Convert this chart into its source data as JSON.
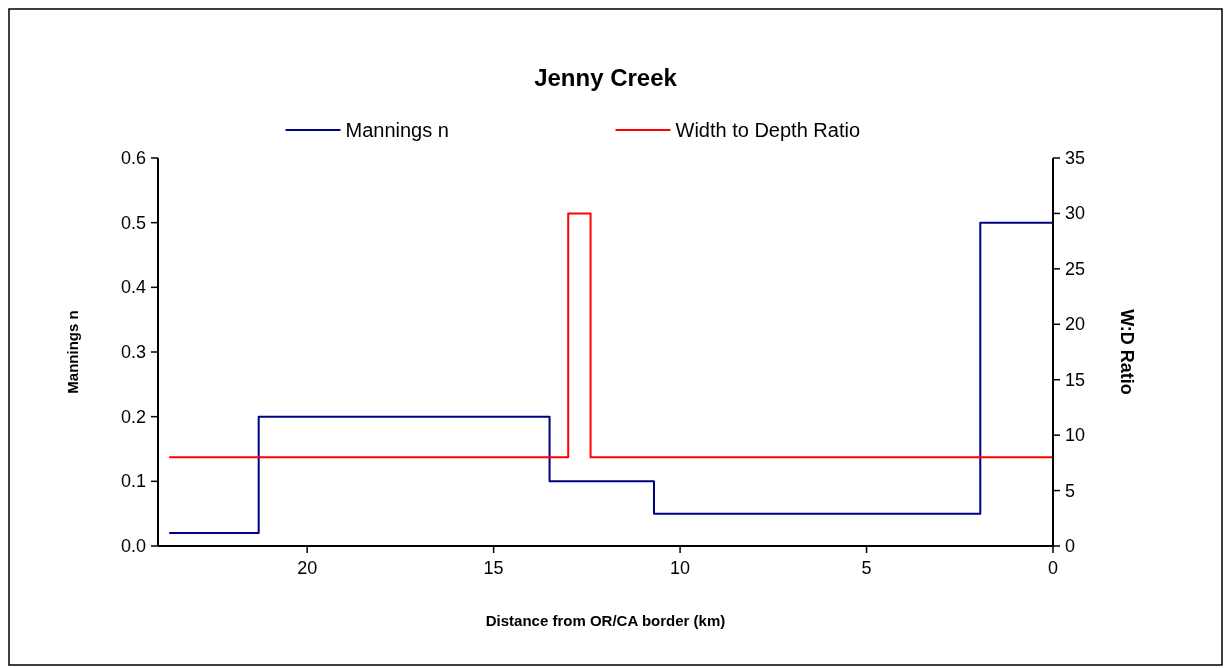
{
  "chart_data": {
    "type": "step",
    "title": "Jenny Creek",
    "xlabel": "Distance from OR/CA border (km)",
    "ylabel": "Mannings n",
    "y2label": "W:D Ratio",
    "series": [
      {
        "name": "Mannings n",
        "color": "#000080",
        "x": [
          23.7,
          21.3,
          13.5,
          10.7,
          1.95,
          0
        ],
        "values": [
          0.02,
          0.2,
          0.1,
          0.05,
          0.5,
          0.5
        ]
      },
      {
        "name": "Width to Depth Ratio",
        "color": "#ff0000",
        "axis": "y2",
        "x": [
          23.7,
          13.0,
          12.4,
          0
        ],
        "values": [
          8,
          30,
          8,
          8
        ]
      }
    ],
    "xlim": [
      24,
      0
    ],
    "xticks": [
      20,
      15,
      10,
      5,
      0
    ],
    "ylim": [
      0,
      0.6
    ],
    "yticks": [
      {
        "value": 0,
        "label": "0.0"
      },
      {
        "value": 0.1,
        "label": "0.1"
      },
      {
        "value": 0.2,
        "label": "0.2"
      },
      {
        "value": 0.3,
        "label": "0.3"
      },
      {
        "value": 0.4,
        "label": "0.4"
      },
      {
        "value": 0.5,
        "label": "0.5"
      },
      {
        "value": 0.6,
        "label": "0.6"
      }
    ],
    "y2lim": [
      0,
      35
    ],
    "y2ticks": [
      0,
      5,
      10,
      15,
      20,
      25,
      30,
      35
    ],
    "legend": "top",
    "grid": false,
    "marker": "none",
    "line_style": "solid"
  }
}
